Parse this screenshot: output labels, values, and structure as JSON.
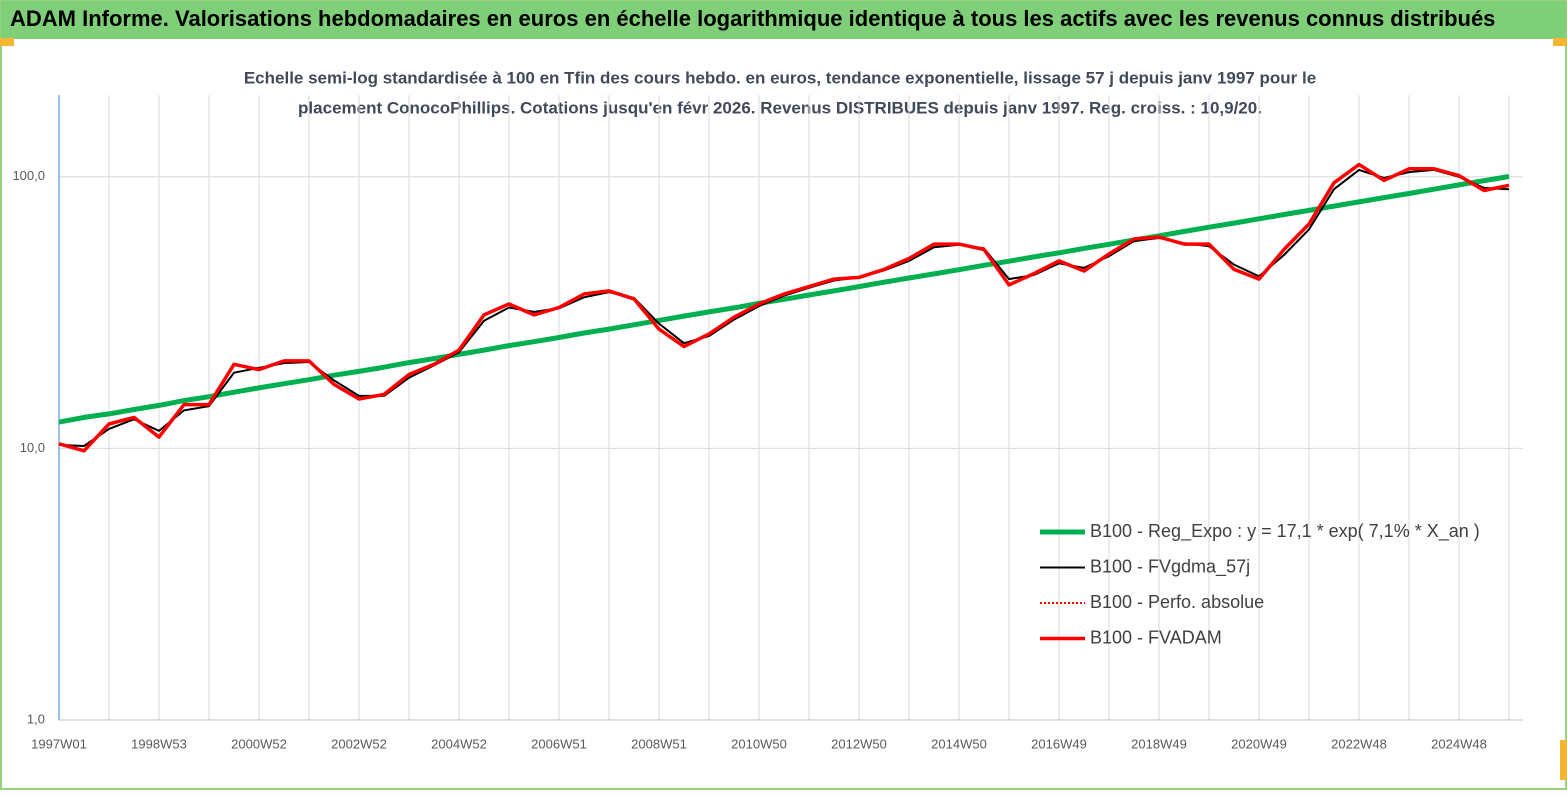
{
  "chart_data": {
    "type": "line",
    "title": "ADAM Informe. Valorisations hebdomadaires en euros en échelle logarithmique identique à tous les actifs avec les revenus connus distribués",
    "subtitle": [
      "Echelle semi-log standardisée à 100 en Tfin des cours hebdo. en euros, tendance exponentielle, lissage 57 j depuis janv 1997 pour le",
      "placement ConocoPhillips. Cotations jusqu'en févr 2026. Revenus DISTRIBUES depuis janv 1997. Reg. croiss. : 10,9/20."
    ],
    "categories": [
      "1997W01",
      null,
      null,
      null,
      "1998W53",
      null,
      null,
      null,
      "2000W52",
      null,
      null,
      null,
      "2002W52",
      null,
      null,
      null,
      "2004W52",
      null,
      null,
      null,
      "2006W51",
      null,
      null,
      null,
      "2008W51",
      null,
      null,
      null,
      "2010W50",
      null,
      null,
      null,
      "2012W50",
      null,
      null,
      null,
      "2014W50",
      null,
      null,
      null,
      "2016W49",
      null,
      null,
      null,
      "2018W49",
      null,
      null,
      null,
      "2020W49",
      null,
      null,
      null,
      "2022W48",
      null,
      null,
      null,
      "2024W48",
      null,
      null
    ],
    "log_scale": true,
    "ylim": [
      1,
      200
    ],
    "yticks": [
      {
        "value": 1,
        "label": "1,0"
      },
      {
        "value": 10,
        "label": "10,0"
      },
      {
        "value": 100,
        "label": "100,0"
      }
    ],
    "grid": true,
    "legend": "right",
    "series": [
      {
        "name": "B100 - Reg_Expo : y = 17,1 *  exp( 7,1% *  X_an )",
        "color": "#00b050",
        "style": "solid",
        "width": 5,
        "values": [
          12.5,
          13.0,
          13.4,
          13.9,
          14.4,
          15.0,
          15.5,
          16.1,
          16.7,
          17.3,
          17.9,
          18.6,
          19.2,
          19.9,
          20.7,
          21.4,
          22.2,
          23.0,
          23.9,
          24.7,
          25.6,
          26.6,
          27.5,
          28.5,
          29.6,
          30.7,
          31.8,
          32.9,
          34.2,
          35.4,
          36.7,
          38.0,
          39.4,
          40.9,
          42.4,
          43.9,
          45.5,
          47.2,
          48.9,
          50.7,
          52.5,
          54.5,
          56.4,
          58.5,
          60.6,
          62.9,
          65.2,
          67.5,
          70.0,
          72.6,
          75.2,
          78.0,
          80.8,
          83.8,
          86.8,
          90.0,
          93.3,
          96.7,
          100.2
        ]
      },
      {
        "name": "B100 - FVgdma_57j",
        "color": "#000000",
        "style": "solid",
        "width": 2,
        "values": [
          10.3,
          10.2,
          11.8,
          12.8,
          11.6,
          13.8,
          14.3,
          19.0,
          19.8,
          20.6,
          20.8,
          17.8,
          15.6,
          15.6,
          18.2,
          20.2,
          22.6,
          29.5,
          33.0,
          31.8,
          32.8,
          36.0,
          37.6,
          35.8,
          28.8,
          24.4,
          25.9,
          29.8,
          33.4,
          36.5,
          39.0,
          41.5,
          42.6,
          45.2,
          49.0,
          55.0,
          56.2,
          54.5,
          42.0,
          43.5,
          48.0,
          46.2,
          51.0,
          58.0,
          59.5,
          57.0,
          55.5,
          47.5,
          43.0,
          51.5,
          64.0,
          90.0,
          106.0,
          99.0,
          104.0,
          106.0,
          100.0,
          91.0,
          90.0
        ]
      },
      {
        "name": "B100 - Perfo. absolue",
        "color": "#ff0000",
        "style": "dotted",
        "width": 2,
        "values": [
          10.4,
          9.8,
          12.3,
          13.0,
          11.0,
          14.5,
          14.5,
          20.4,
          19.5,
          21.0,
          21.0,
          17.2,
          15.2,
          15.8,
          18.7,
          20.4,
          23.0,
          31.0,
          34.0,
          31.0,
          33.0,
          37.0,
          38.0,
          35.5,
          27.5,
          23.7,
          26.4,
          30.4,
          34.0,
          37.0,
          39.4,
          42.0,
          42.6,
          45.6,
          50.0,
          56.5,
          56.5,
          54.0,
          40.0,
          44.0,
          49.0,
          45.0,
          52.0,
          59.0,
          60.0,
          56.5,
          56.5,
          45.6,
          42.0,
          54.0,
          67.0,
          95.0,
          111.0,
          97.0,
          107.0,
          107.0,
          101.0,
          89.0,
          93.0
        ]
      },
      {
        "name": "B100 - FVADAM",
        "color": "#ff0000",
        "style": "solid",
        "width": 3.5,
        "values": [
          10.4,
          9.8,
          12.3,
          13.0,
          11.0,
          14.5,
          14.5,
          20.4,
          19.5,
          21.0,
          21.0,
          17.2,
          15.2,
          15.8,
          18.7,
          20.4,
          23.0,
          31.0,
          34.0,
          31.0,
          33.0,
          37.0,
          38.0,
          35.5,
          27.5,
          23.7,
          26.4,
          30.4,
          34.0,
          37.0,
          39.4,
          42.0,
          42.6,
          45.6,
          50.0,
          56.5,
          56.5,
          54.0,
          40.0,
          44.0,
          49.0,
          45.0,
          52.0,
          59.0,
          60.0,
          56.5,
          56.5,
          45.6,
          42.0,
          54.0,
          67.0,
          95.0,
          111.0,
          97.0,
          107.0,
          107.0,
          101.0,
          89.0,
          93.0
        ]
      }
    ]
  }
}
